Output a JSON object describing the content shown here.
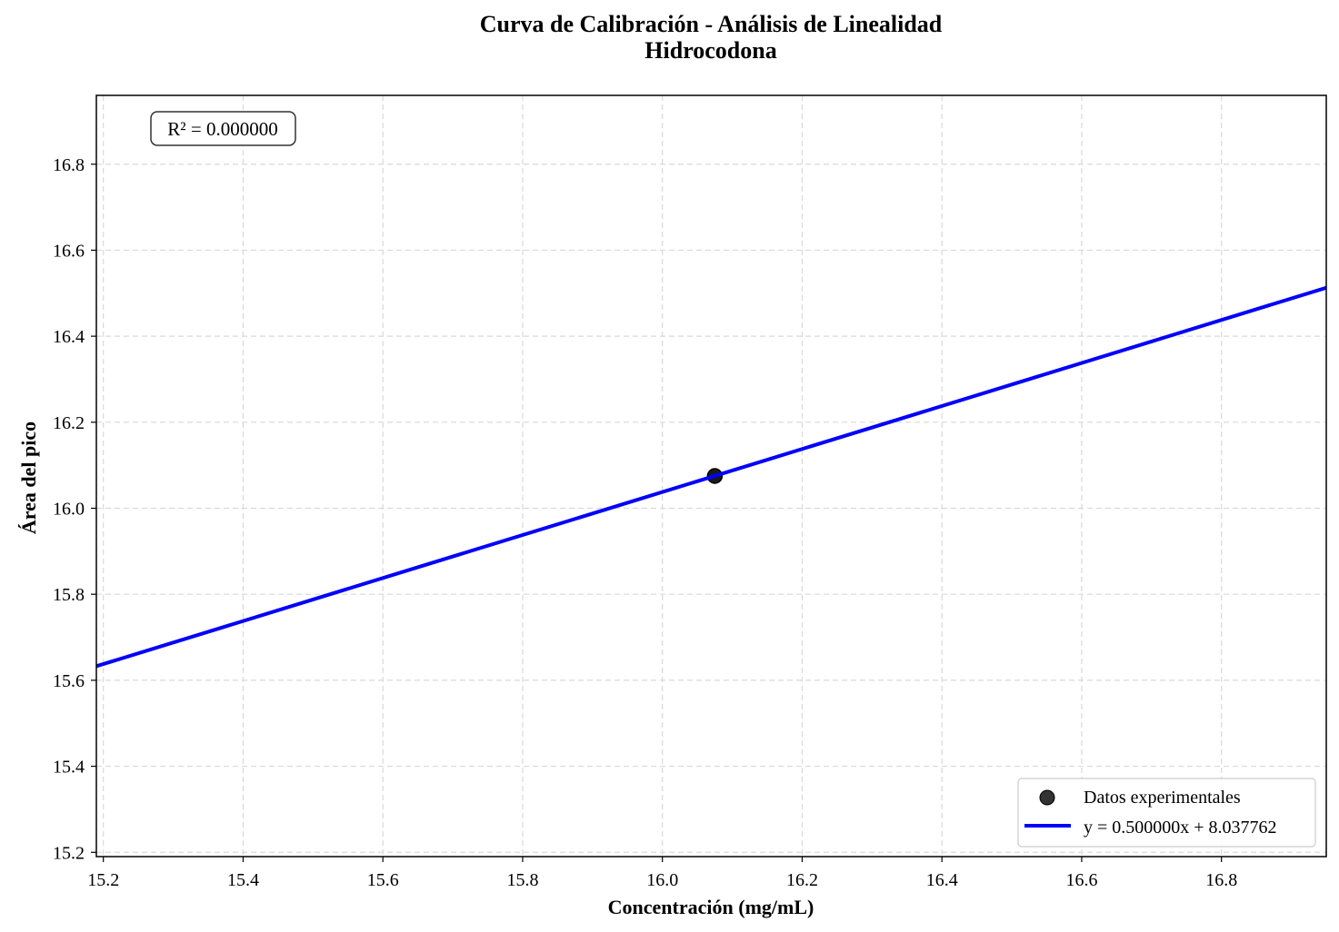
{
  "chart_data": {
    "type": "scatter",
    "title": [
      "Curva de Calibración - Análisis de Linealidad",
      "Hidrocodona"
    ],
    "xlabel": "Concentración (mg/mL)",
    "ylabel": "Área del pico",
    "xlim": [
      15.19,
      16.95
    ],
    "ylim": [
      15.19,
      16.96
    ],
    "xticks": [
      15.2,
      15.4,
      15.6,
      15.8,
      16.0,
      16.2,
      16.4,
      16.6,
      16.8
    ],
    "yticks": [
      15.2,
      15.4,
      15.6,
      15.8,
      16.0,
      16.2,
      16.4,
      16.6,
      16.8
    ],
    "grid": true,
    "series": [
      {
        "name": "Datos experimentales",
        "kind": "scatter",
        "color": "#000000",
        "points": [
          {
            "x": 16.075,
            "y": 16.075
          }
        ]
      },
      {
        "name": "y = 0.500000x + 8.037762",
        "kind": "line",
        "color": "#0000ff",
        "slope": 0.5,
        "intercept": 8.037762
      }
    ],
    "legend": {
      "position": "bottom-right"
    },
    "annotation": {
      "text": "R² = 0.000000",
      "position": "top-left"
    }
  }
}
